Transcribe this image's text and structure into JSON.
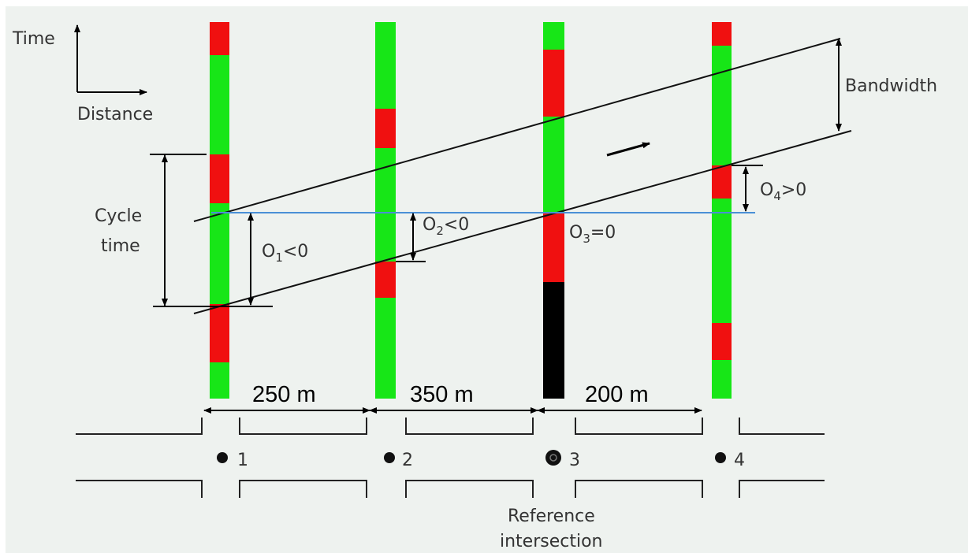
{
  "colors": {
    "green": "#17e617",
    "red": "#f01010",
    "reference_line": "#4a8fd6",
    "background": "#eef2ef"
  },
  "axes": {
    "time_label": "Time",
    "distance_label": "Distance"
  },
  "labels": {
    "bandwidth": "Bandwidth",
    "cycle_time_line1": "Cycle",
    "cycle_time_line2": "time",
    "reference_line1": "Reference",
    "reference_line2": "intersection"
  },
  "offsets": [
    {
      "sym": "O",
      "sub": "1",
      "rel": "<0"
    },
    {
      "sym": "O",
      "sub": "2",
      "rel": "<0"
    },
    {
      "sym": "O",
      "sub": "3",
      "rel": "=0"
    },
    {
      "sym": "O",
      "sub": "4",
      "rel": ">0"
    }
  ],
  "intersections": [
    {
      "number": "1"
    },
    {
      "number": "2"
    },
    {
      "number": "3",
      "reference": true
    },
    {
      "number": "4"
    }
  ],
  "distances": [
    "250 m",
    "350 m",
    "200 m"
  ],
  "signal_phases": [
    [
      "red",
      "green",
      "red",
      "green",
      "red",
      "green"
    ],
    [
      "green",
      "red",
      "green",
      "red",
      "green"
    ],
    [
      "green",
      "red",
      "green",
      "red"
    ],
    [
      "red",
      "green",
      "red",
      "green",
      "red",
      "green"
    ]
  ]
}
